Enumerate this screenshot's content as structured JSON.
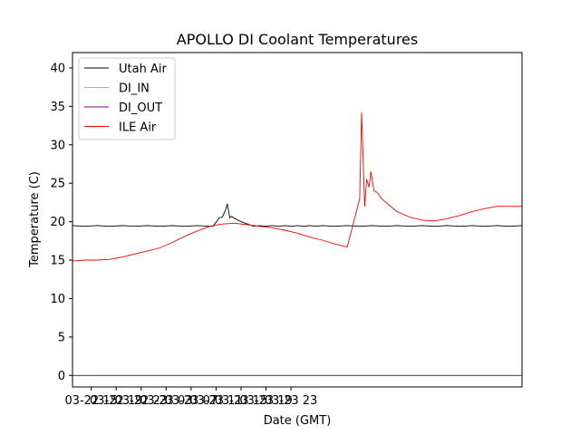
{
  "chart_data": {
    "type": "line",
    "title": "APOLLO DI Coolant Temperatures",
    "xlabel": "Date (GMT)",
    "ylabel": "Temperature (C)",
    "xlim": [
      0,
      72
    ],
    "ylim": [
      -1.5,
      42
    ],
    "grid": false,
    "legend_position": "top-left",
    "x_unit": "hours since 03-22 12:00 GMT",
    "xticks": [
      {
        "x": 3,
        "label": "03-22 15"
      },
      {
        "x": 7,
        "label": "03-22 19"
      },
      {
        "x": 11,
        "label": "03-22 23"
      },
      {
        "x": 15,
        "label": "03-23 03"
      },
      {
        "x": 19,
        "label": "03-23 07"
      },
      {
        "x": 23,
        "label": "03-23 11"
      },
      {
        "x": 27,
        "label": "03-23 15"
      },
      {
        "x": 31,
        "label": "03-23 19"
      },
      {
        "x": 35,
        "label": "03-23 23"
      }
    ],
    "yticks": [
      0,
      5,
      10,
      15,
      20,
      25,
      30,
      35,
      40
    ],
    "series": [
      {
        "name": "Utah Air",
        "color": "#000000",
        "x": [
          0,
          2,
          4,
          6,
          8,
          10,
          12,
          14,
          16,
          18,
          20,
          22,
          22.5,
          23.5,
          24,
          24.5,
          24.8,
          25.2,
          25.5,
          26,
          27,
          28,
          29,
          30,
          31,
          32,
          33,
          34,
          35,
          36,
          37,
          38,
          39,
          40,
          42,
          44,
          46,
          48,
          50,
          52,
          54,
          56,
          58,
          60,
          62,
          64,
          66,
          68,
          70,
          72
        ],
        "y": [
          19.5,
          19.4,
          19.5,
          19.4,
          19.5,
          19.4,
          19.5,
          19.4,
          19.5,
          19.4,
          19.5,
          19.4,
          19.4,
          20.5,
          20.6,
          21.5,
          22.3,
          20.5,
          20.7,
          20.4,
          20.0,
          19.7,
          19.4,
          19.5,
          19.4,
          19.5,
          19.4,
          19.5,
          19.4,
          19.5,
          19.4,
          19.5,
          19.4,
          19.5,
          19.4,
          19.5,
          19.4,
          19.5,
          19.4,
          19.5,
          19.4,
          19.5,
          19.4,
          19.5,
          19.4,
          19.5,
          19.4,
          19.5,
          19.4,
          19.5
        ]
      },
      {
        "name": "DI_IN",
        "color": "#e0b000",
        "x": [
          0,
          72
        ],
        "y": [
          0,
          0
        ]
      },
      {
        "name": "DI_OUT",
        "color": "#800080",
        "x": [
          0,
          72
        ],
        "y": [
          0,
          0
        ]
      },
      {
        "name": "ILE Air",
        "color": "#ff0000",
        "x": [
          0,
          2,
          4,
          6,
          8,
          10,
          12,
          14,
          16,
          18,
          20,
          22,
          24,
          26,
          28,
          30,
          32,
          34,
          36,
          38,
          40,
          42,
          44,
          46,
          46.3,
          46.8,
          47.1,
          47.5,
          47.8,
          48.3,
          48.8,
          49.5,
          50.5,
          52,
          54,
          56,
          58,
          60,
          62,
          64,
          66,
          68,
          70,
          72
        ],
        "y": [
          14.9,
          15.0,
          15.0,
          15.1,
          15.4,
          15.8,
          16.2,
          16.6,
          17.3,
          18.1,
          18.8,
          19.4,
          19.7,
          19.8,
          19.6,
          19.4,
          19.2,
          18.9,
          18.5,
          18.0,
          17.6,
          17.1,
          16.7,
          23.0,
          34.2,
          22.0,
          25.5,
          24.5,
          26.5,
          24.0,
          23.8,
          23.0,
          22.3,
          21.3,
          20.6,
          20.2,
          20.1,
          20.4,
          20.8,
          21.3,
          21.7,
          22.0,
          22.0,
          22.0
        ]
      }
    ]
  }
}
